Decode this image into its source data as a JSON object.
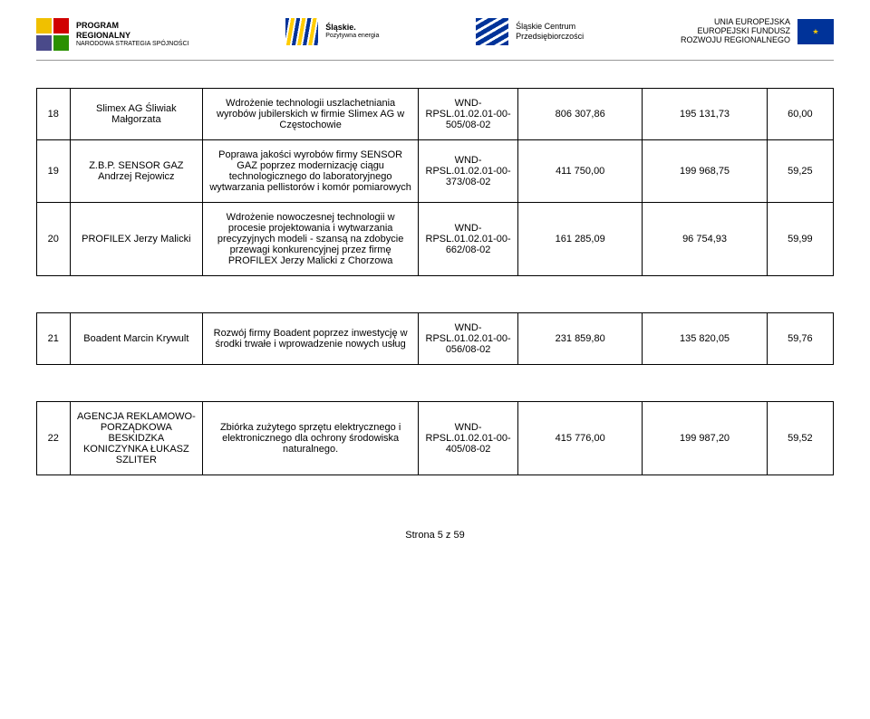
{
  "header": {
    "logo1": {
      "line1": "PROGRAM",
      "line2": "REGIONALNY",
      "sub": "NARODOWA STRATEGIA SPÓJNOŚCI"
    },
    "logo2": {
      "line1": "Śląskie.",
      "sub": "Pozytywna energia"
    },
    "logo3": {
      "line1": "Śląskie Centrum",
      "line2": "Przedsiębiorczości"
    },
    "logo4": {
      "line1": "UNIA EUROPEJSKA",
      "line2": "EUROPEJSKI FUNDUSZ",
      "line3": "ROZWOJU REGIONALNEGO"
    }
  },
  "rows": [
    {
      "num": "18",
      "beneficiary": "Slimex AG Śliwiak Małgorzata",
      "description": "Wdrożenie technologii uszlachetniania wyrobów jubilerskich w firmie Slimex AG w Częstochowie",
      "code": "WND-RPSL.01.02.01-00-505/08-02",
      "amount1": "806 307,86",
      "amount2": "195 131,73",
      "score": "60,00"
    },
    {
      "num": "19",
      "beneficiary": "Z.B.P. SENSOR GAZ Andrzej Rejowicz",
      "description": "Poprawa jakości wyrobów firmy SENSOR GAZ poprzez modernizację ciągu technologicznego do laboratoryjnego wytwarzania pellistorów i komór pomiarowych",
      "code": "WND-RPSL.01.02.01-00-373/08-02",
      "amount1": "411 750,00",
      "amount2": "199 968,75",
      "score": "59,25"
    },
    {
      "num": "20",
      "beneficiary": "PROFILEX Jerzy Malicki",
      "description": "Wdrożenie nowoczesnej technologii w procesie projektowania i wytwarzania precyzyjnych modeli - szansą na zdobycie przewagi konkurencyjnej przez firmę PROFILEX Jerzy Malicki z Chorzowa",
      "code": "WND-RPSL.01.02.01-00-662/08-02",
      "amount1": "161 285,09",
      "amount2": "96 754,93",
      "score": "59,99"
    },
    {
      "num": "21",
      "beneficiary": "Boadent Marcin Krywult",
      "description": "Rozwój firmy Boadent poprzez inwestycję w środki trwałe i wprowadzenie nowych usług",
      "code": "WND-RPSL.01.02.01-00-056/08-02",
      "amount1": "231 859,80",
      "amount2": "135 820,05",
      "score": "59,76"
    },
    {
      "num": "22",
      "beneficiary": "AGENCJA REKLAMOWO-PORZĄDKOWA BESKIDZKA KONICZYNKA ŁUKASZ SZLITER",
      "description": "Zbiórka zużytego sprzętu elektrycznego i elektronicznego dla ochrony środowiska naturalnego.",
      "code": "WND-RPSL.01.02.01-00-405/08-02",
      "amount1": "415 776,00",
      "amount2": "199 987,20",
      "score": "59,52"
    }
  ],
  "footer": "Strona 5 z 59"
}
